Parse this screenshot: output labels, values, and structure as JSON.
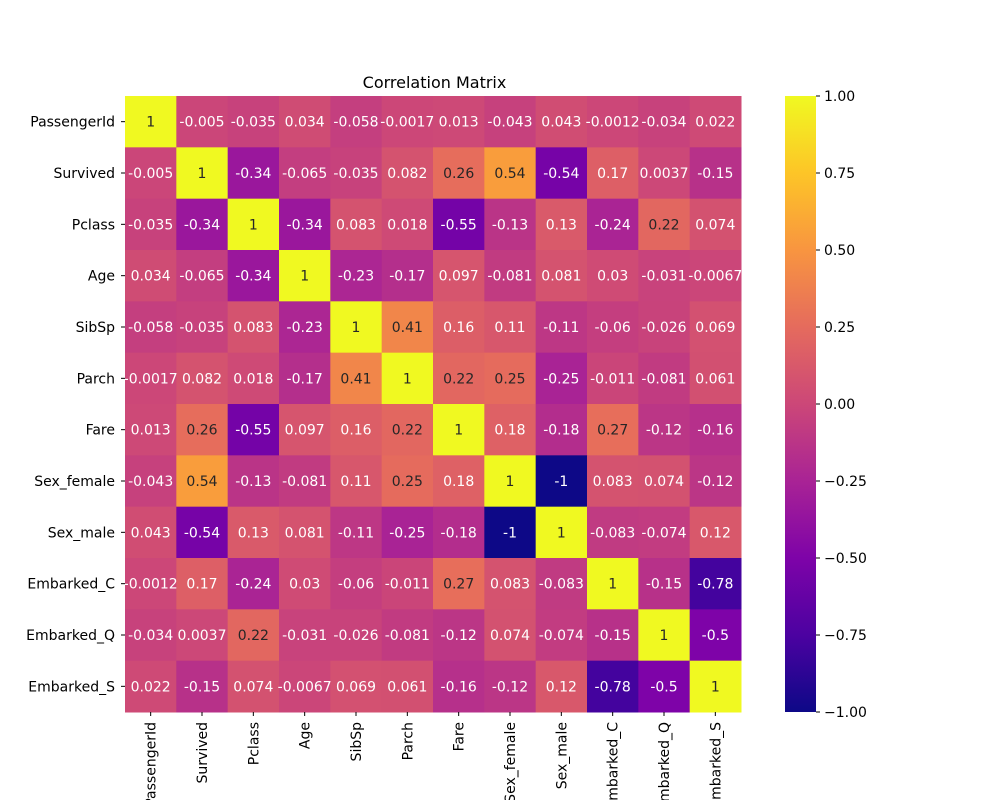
{
  "chart_data": {
    "type": "heatmap",
    "title": "Correlation Matrix",
    "variables": [
      "PassengerId",
      "Survived",
      "Pclass",
      "Age",
      "SibSp",
      "Parch",
      "Fare",
      "Sex_female",
      "Sex_male",
      "Embarked_C",
      "Embarked_Q",
      "Embarked_S"
    ],
    "matrix": [
      [
        "1",
        "-0.005",
        "-0.035",
        "0.034",
        "-0.058",
        "-0.0017",
        "0.013",
        "-0.043",
        "0.043",
        "-0.0012",
        "-0.034",
        "0.022"
      ],
      [
        "-0.005",
        "1",
        "-0.34",
        "-0.065",
        "-0.035",
        "0.082",
        "0.26",
        "0.54",
        "-0.54",
        "0.17",
        "0.0037",
        "-0.15"
      ],
      [
        "-0.035",
        "-0.34",
        "1",
        "-0.34",
        "0.083",
        "0.018",
        "-0.55",
        "-0.13",
        "0.13",
        "-0.24",
        "0.22",
        "0.074"
      ],
      [
        "0.034",
        "-0.065",
        "-0.34",
        "1",
        "-0.23",
        "-0.17",
        "0.097",
        "-0.081",
        "0.081",
        "0.03",
        "-0.031",
        "-0.0067"
      ],
      [
        "-0.058",
        "-0.035",
        "0.083",
        "-0.23",
        "1",
        "0.41",
        "0.16",
        "0.11",
        "-0.11",
        "-0.06",
        "-0.026",
        "0.069"
      ],
      [
        "-0.0017",
        "0.082",
        "0.018",
        "-0.17",
        "0.41",
        "1",
        "0.22",
        "0.25",
        "-0.25",
        "-0.011",
        "-0.081",
        "0.061"
      ],
      [
        "0.013",
        "0.26",
        "-0.55",
        "0.097",
        "0.16",
        "0.22",
        "1",
        "0.18",
        "-0.18",
        "0.27",
        "-0.12",
        "-0.16"
      ],
      [
        "-0.043",
        "0.54",
        "-0.13",
        "-0.081",
        "0.11",
        "0.25",
        "0.18",
        "1",
        "-1",
        "0.083",
        "0.074",
        "-0.12"
      ],
      [
        "0.043",
        "-0.54",
        "0.13",
        "0.081",
        "-0.11",
        "-0.25",
        "-0.18",
        "-1",
        "1",
        "-0.083",
        "-0.074",
        "0.12"
      ],
      [
        "-0.0012",
        "0.17",
        "-0.24",
        "0.03",
        "-0.06",
        "-0.011",
        "0.27",
        "0.083",
        "-0.083",
        "1",
        "-0.15",
        "-0.78"
      ],
      [
        "-0.034",
        "0.0037",
        "0.22",
        "-0.031",
        "-0.026",
        "-0.081",
        "-0.12",
        "0.074",
        "-0.074",
        "-0.15",
        "1",
        "-0.5"
      ],
      [
        "0.022",
        "-0.15",
        "0.074",
        "-0.0067",
        "0.069",
        "0.061",
        "-0.16",
        "-0.12",
        "0.12",
        "-0.78",
        "-0.5",
        "1"
      ]
    ],
    "colorbar": {
      "colormap": "plasma",
      "range": [
        -1,
        1
      ],
      "ticks": [
        "1.00",
        "0.75",
        "0.50",
        "0.25",
        "0.00",
        "−0.25",
        "−0.50",
        "−0.75",
        "−1.00"
      ]
    },
    "annotation_colors": {
      "light_cells": "#262626",
      "dark_cells": "#ffffff"
    }
  }
}
